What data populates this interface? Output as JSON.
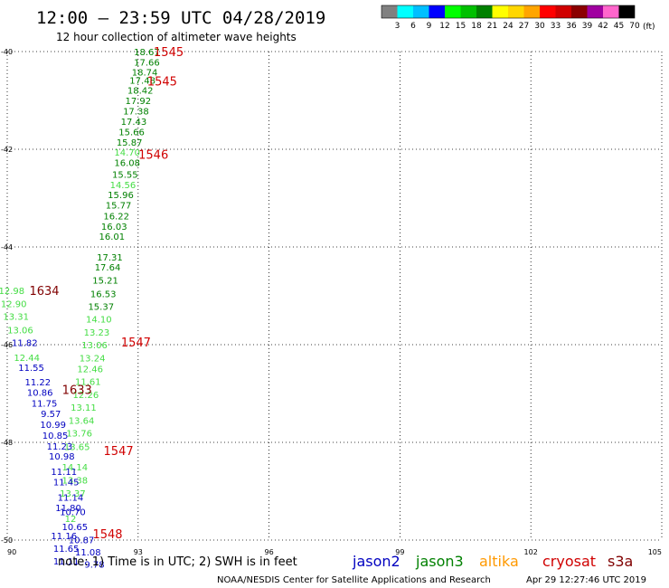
{
  "header": {
    "title": "12:00 – 23:59 UTC 04/28/2019",
    "subtitle": "12 hour collection of altimeter wave heights"
  },
  "legend": {
    "swatches": [
      {
        "label": "3",
        "color": "#808080"
      },
      {
        "label": "6",
        "color": "#00ffff"
      },
      {
        "label": "9",
        "color": "#00bfff"
      },
      {
        "label": "12",
        "color": "#0000ff"
      },
      {
        "label": "15",
        "color": "#00ff00"
      },
      {
        "label": "18",
        "color": "#00c000"
      },
      {
        "label": "21",
        "color": "#008000"
      },
      {
        "label": "24",
        "color": "#ffff00"
      },
      {
        "label": "27",
        "color": "#ffd700"
      },
      {
        "label": "30",
        "color": "#ffa500"
      },
      {
        "label": "33",
        "color": "#ff0000"
      },
      {
        "label": "36",
        "color": "#d00000"
      },
      {
        "label": "39",
        "color": "#8b0000"
      },
      {
        "label": "42",
        "color": "#a000a0"
      },
      {
        "label": "45",
        "color": "#ff66cc"
      },
      {
        "label": "70",
        "color": "#000000"
      }
    ],
    "unit": "(ft)"
  },
  "map": {
    "lon_ticks": [
      "90",
      "93",
      "96",
      "99",
      "102",
      "105"
    ],
    "lat_ticks": [
      "-40",
      "-42",
      "-44",
      "-46",
      "-48",
      "-50"
    ],
    "lon_range": [
      90,
      105
    ],
    "lat_range": [
      -40,
      -50
    ],
    "grid": true
  },
  "chart_data": {
    "type": "scatter",
    "x_axis": "longitude",
    "y_axis": "latitude",
    "xlim": [
      90,
      105
    ],
    "ylim": [
      -50,
      -40
    ],
    "series": [
      {
        "name": "jason3",
        "color": "#008000",
        "points": [
          {
            "lon": 93.2,
            "lat": -40.0,
            "v": "18.67"
          },
          {
            "lon": 93.2,
            "lat": -40.21,
            "v": "17.66"
          },
          {
            "lon": 93.15,
            "lat": -40.42,
            "v": "18.74"
          },
          {
            "lon": 93.1,
            "lat": -40.58,
            "v": "17.48"
          },
          {
            "lon": 93.05,
            "lat": -40.79,
            "v": "18.42"
          },
          {
            "lon": 93.0,
            "lat": -41.0,
            "v": "17.92"
          },
          {
            "lon": 92.95,
            "lat": -41.21,
            "v": "17.38"
          },
          {
            "lon": 92.9,
            "lat": -41.43,
            "v": "17.43"
          },
          {
            "lon": 92.85,
            "lat": -41.64,
            "v": "15.66"
          },
          {
            "lon": 92.8,
            "lat": -41.85,
            "v": "15.87"
          },
          {
            "lon": 92.75,
            "lat": -42.27,
            "v": "16.08"
          },
          {
            "lon": 92.7,
            "lat": -42.51,
            "v": "15.55"
          },
          {
            "lon": 92.6,
            "lat": -42.93,
            "v": "15.96"
          },
          {
            "lon": 92.55,
            "lat": -43.14,
            "v": "15.77"
          },
          {
            "lon": 92.5,
            "lat": -43.36,
            "v": "16.22"
          },
          {
            "lon": 92.45,
            "lat": -43.57,
            "v": "16.03"
          },
          {
            "lon": 92.4,
            "lat": -43.78,
            "v": "16.01"
          },
          {
            "lon": 92.35,
            "lat": -44.2,
            "v": "17.31"
          },
          {
            "lon": 92.3,
            "lat": -44.41,
            "v": "17.64"
          },
          {
            "lon": 92.25,
            "lat": -44.68,
            "v": "15.21"
          },
          {
            "lon": 92.2,
            "lat": -44.95,
            "v": "16.53"
          },
          {
            "lon": 92.15,
            "lat": -45.21,
            "v": "15.37"
          }
        ]
      },
      {
        "name": "jason3-light",
        "color": "#44dd44",
        "points": [
          {
            "lon": 92.75,
            "lat": -42.06,
            "v": "14.70"
          },
          {
            "lon": 92.65,
            "lat": -42.72,
            "v": "14.56"
          },
          {
            "lon": 92.1,
            "lat": -45.47,
            "v": "14.10"
          },
          {
            "lon": 92.05,
            "lat": -45.74,
            "v": "13.23"
          },
          {
            "lon": 92.0,
            "lat": -46.0,
            "v": "13.06"
          },
          {
            "lon": 91.95,
            "lat": -46.27,
            "v": "13.24"
          },
          {
            "lon": 91.9,
            "lat": -46.49,
            "v": "12.46"
          },
          {
            "lon": 91.85,
            "lat": -46.75,
            "v": "11.61"
          },
          {
            "lon": 91.8,
            "lat": -47.02,
            "v": "12.26"
          },
          {
            "lon": 91.75,
            "lat": -47.28,
            "v": "13.11"
          },
          {
            "lon": 91.7,
            "lat": -47.55,
            "v": "13.64"
          },
          {
            "lon": 91.65,
            "lat": -47.81,
            "v": "13.76"
          },
          {
            "lon": 91.6,
            "lat": -48.08,
            "v": "13.65"
          },
          {
            "lon": 91.55,
            "lat": -48.5,
            "v": "14.14"
          },
          {
            "lon": 91.55,
            "lat": -48.77,
            "v": "13.38"
          },
          {
            "lon": 91.5,
            "lat": -49.04,
            "v": "13.37"
          },
          {
            "lon": 91.45,
            "lat": -49.56,
            "v": "12"
          },
          {
            "lon": 90.1,
            "lat": -44.89,
            "v": "12.98"
          },
          {
            "lon": 90.15,
            "lat": -45.16,
            "v": "12.90"
          },
          {
            "lon": 90.2,
            "lat": -45.42,
            "v": "13.31"
          },
          {
            "lon": 90.3,
            "lat": -45.69,
            "v": "13.06"
          },
          {
            "lon": 90.45,
            "lat": -46.26,
            "v": "12.44"
          }
        ]
      },
      {
        "name": "jason2",
        "color": "#0000c0",
        "points": [
          {
            "lon": 90.4,
            "lat": -45.95,
            "v": "11.82"
          },
          {
            "lon": 90.55,
            "lat": -46.46,
            "v": "11.55"
          },
          {
            "lon": 90.7,
            "lat": -46.76,
            "v": "11.22"
          },
          {
            "lon": 90.75,
            "lat": -46.97,
            "v": "10.86"
          },
          {
            "lon": 90.85,
            "lat": -47.19,
            "v": "11.75"
          },
          {
            "lon": 91.0,
            "lat": -47.41,
            "v": "9.57"
          },
          {
            "lon": 91.05,
            "lat": -47.63,
            "v": "10.99"
          },
          {
            "lon": 91.1,
            "lat": -47.85,
            "v": "10.85"
          },
          {
            "lon": 91.2,
            "lat": -48.07,
            "v": "11.23"
          },
          {
            "lon": 91.25,
            "lat": -48.28,
            "v": "10.98"
          },
          {
            "lon": 91.3,
            "lat": -48.59,
            "v": "11.11"
          },
          {
            "lon": 91.35,
            "lat": -48.81,
            "v": "11.45"
          },
          {
            "lon": 91.45,
            "lat": -49.12,
            "v": "11.14"
          },
          {
            "lon": 91.4,
            "lat": -49.33,
            "v": "11.80"
          },
          {
            "lon": 91.5,
            "lat": -49.42,
            "v": "10.70"
          },
          {
            "lon": 91.55,
            "lat": -49.72,
            "v": "10.65"
          },
          {
            "lon": 91.3,
            "lat": -49.91,
            "v": "11.16"
          },
          {
            "lon": 91.7,
            "lat": -49.99,
            "v": "10.87"
          },
          {
            "lon": 91.35,
            "lat": -50.17,
            "v": "11.65"
          },
          {
            "lon": 91.85,
            "lat": -50.24,
            "v": "11.08"
          },
          {
            "lon": 91.35,
            "lat": -50.43,
            "v": "11.11"
          },
          {
            "lon": 92.0,
            "lat": -50.49,
            "v": "9.78"
          }
        ]
      }
    ],
    "pass_labels": [
      {
        "lon": 93.7,
        "lat": -40.0,
        "text": "1545",
        "color": "#d00000"
      },
      {
        "lon": 93.55,
        "lat": -40.6,
        "text": "1545",
        "color": "#d00000"
      },
      {
        "lon": 93.35,
        "lat": -42.1,
        "text": "1546",
        "color": "#d00000"
      },
      {
        "lon": 92.95,
        "lat": -45.94,
        "text": "1547",
        "color": "#d00000"
      },
      {
        "lon": 92.55,
        "lat": -48.17,
        "text": "1547",
        "color": "#d00000"
      },
      {
        "lon": 92.3,
        "lat": -49.87,
        "text": "1548",
        "color": "#d00000"
      },
      {
        "lon": 90.85,
        "lat": -44.89,
        "text": "1634",
        "color": "#800000"
      },
      {
        "lon": 91.6,
        "lat": -46.92,
        "text": "1633",
        "color": "#800000"
      }
    ]
  },
  "footer": {
    "note": "note:  1) Time is in UTC;  2) SWH is in feet",
    "satellites": [
      {
        "name": "jason2",
        "color": "#0000c0"
      },
      {
        "name": "jason3",
        "color": "#008000"
      },
      {
        "name": "altika",
        "color": "#ff9900"
      },
      {
        "name": "cryosat",
        "color": "#d00000"
      },
      {
        "name": "s3a",
        "color": "#800000"
      }
    ],
    "credit": "NOAA/NESDIS Center for Satellite Applications and Research",
    "timestamp": "Apr 29 12:27:46 UTC 2019"
  }
}
